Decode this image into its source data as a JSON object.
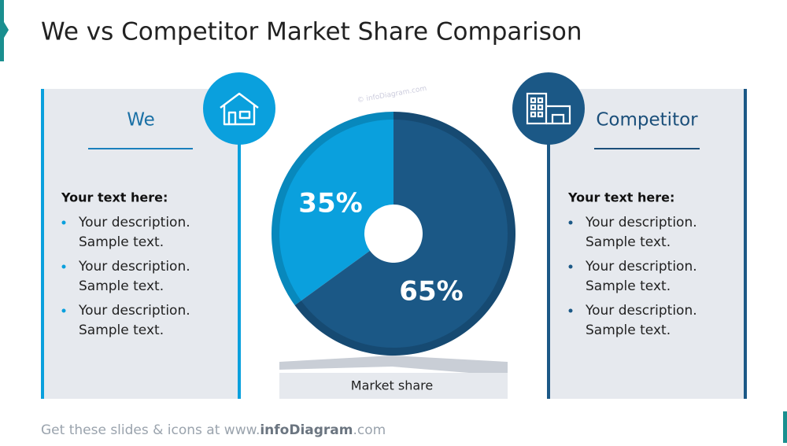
{
  "title": "We vs Competitor Market Share Comparison",
  "watermark": "© infoDiagram.com",
  "chart_data": {
    "type": "pie",
    "categories": [
      "We",
      "Competitor"
    ],
    "values": [
      35,
      65
    ],
    "value_labels": [
      "35%",
      "65%"
    ],
    "colors": [
      "#0aa0dd",
      "#1b5886"
    ],
    "label": "Market share"
  },
  "left_panel": {
    "subtitle": "Your text here:",
    "items": [
      [
        "Your description.",
        "Sample text."
      ],
      [
        "Your description.",
        "Sample text."
      ],
      [
        "Your description.",
        "Sample text."
      ]
    ]
  },
  "right_panel": {
    "subtitle": "Your text here:",
    "items": [
      [
        "Your description.",
        "Sample text."
      ],
      [
        "Your description.",
        "Sample text."
      ],
      [
        "Your description.",
        "Sample text."
      ]
    ]
  },
  "footer": {
    "prefix": "Get these slides & icons at www.",
    "brand": "infoDiagram",
    "suffix": ".com"
  }
}
